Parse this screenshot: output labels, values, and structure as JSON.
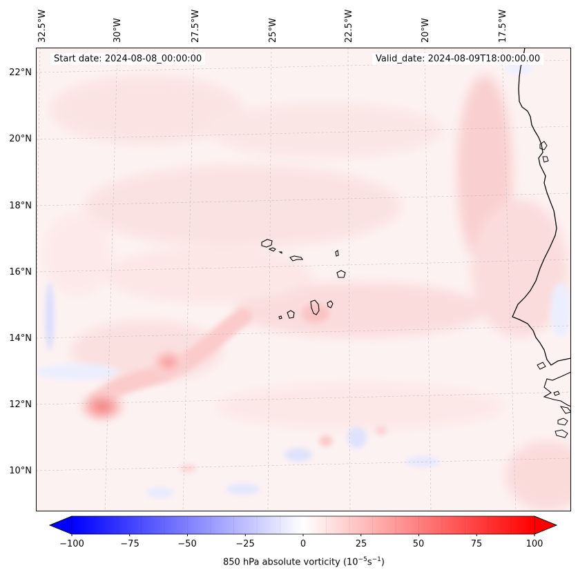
{
  "map": {
    "start_date": "Start date: 2024-08-08_00:00:00",
    "valid_date": "Valid_date: 2024-08-09T18:00:00.00",
    "lon_labels": [
      "32.5°W",
      "30°W",
      "27.5°W",
      "25°W",
      "22.5°W",
      "20°W",
      "17.5°W"
    ],
    "lat_labels": [
      "22°N",
      "20°N",
      "18°N",
      "16°N",
      "14°N",
      "12°N",
      "10°N"
    ]
  },
  "colorbar": {
    "ticks": [
      "−100",
      "−75",
      "−50",
      "−25",
      "0",
      "25",
      "50",
      "75",
      "100"
    ],
    "label_main": "850 hPa absolute vorticity (10",
    "label_exp1": "−5",
    "label_mid": "s",
    "label_exp2": "−1",
    "label_end": ")",
    "min_color": "#0000ff",
    "mid_color": "#ffffff",
    "max_color": "#ff0000"
  }
}
